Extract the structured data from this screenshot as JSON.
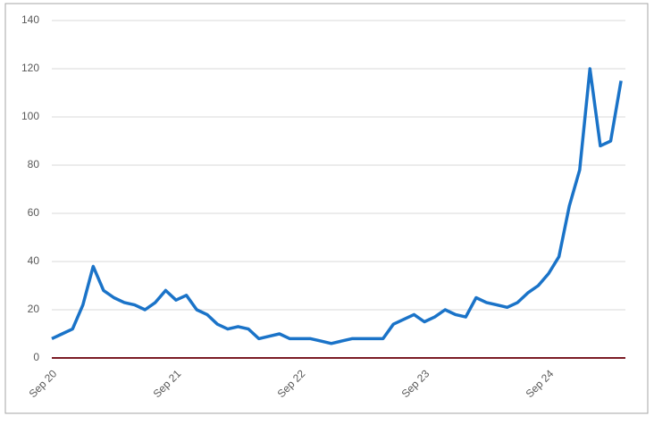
{
  "chart_data": {
    "type": "line",
    "categories": [
      "Sep 20",
      null,
      null,
      null,
      null,
      null,
      null,
      null,
      null,
      null,
      null,
      null,
      "Sep 21",
      null,
      null,
      null,
      null,
      null,
      null,
      null,
      null,
      null,
      null,
      null,
      "Sep 22",
      null,
      null,
      null,
      null,
      null,
      null,
      null,
      null,
      null,
      null,
      null,
      "Sep 23",
      null,
      null,
      null,
      null,
      null,
      null,
      null,
      null,
      null,
      null,
      null,
      "Sep 24",
      null,
      null,
      null,
      null,
      null,
      null,
      null
    ],
    "series": [
      {
        "color": "#1a73c8",
        "values": [
          8,
          10,
          12,
          22,
          38,
          28,
          25,
          23,
          22,
          20,
          23,
          28,
          24,
          26,
          20,
          18,
          14,
          12,
          13,
          12,
          8,
          9,
          10,
          8,
          8,
          8,
          7,
          6,
          7,
          8,
          8,
          8,
          8,
          14,
          16,
          18,
          15,
          17,
          20,
          18,
          17,
          25,
          23,
          22,
          21,
          23,
          27,
          30,
          35,
          42,
          63,
          78,
          120,
          88,
          90,
          115
        ]
      }
    ],
    "ylim": [
      0,
      140
    ],
    "yticks": [
      0,
      20,
      40,
      60,
      80,
      100,
      120,
      140
    ],
    "grid": true,
    "zero_line_color": "#7b1c26"
  }
}
